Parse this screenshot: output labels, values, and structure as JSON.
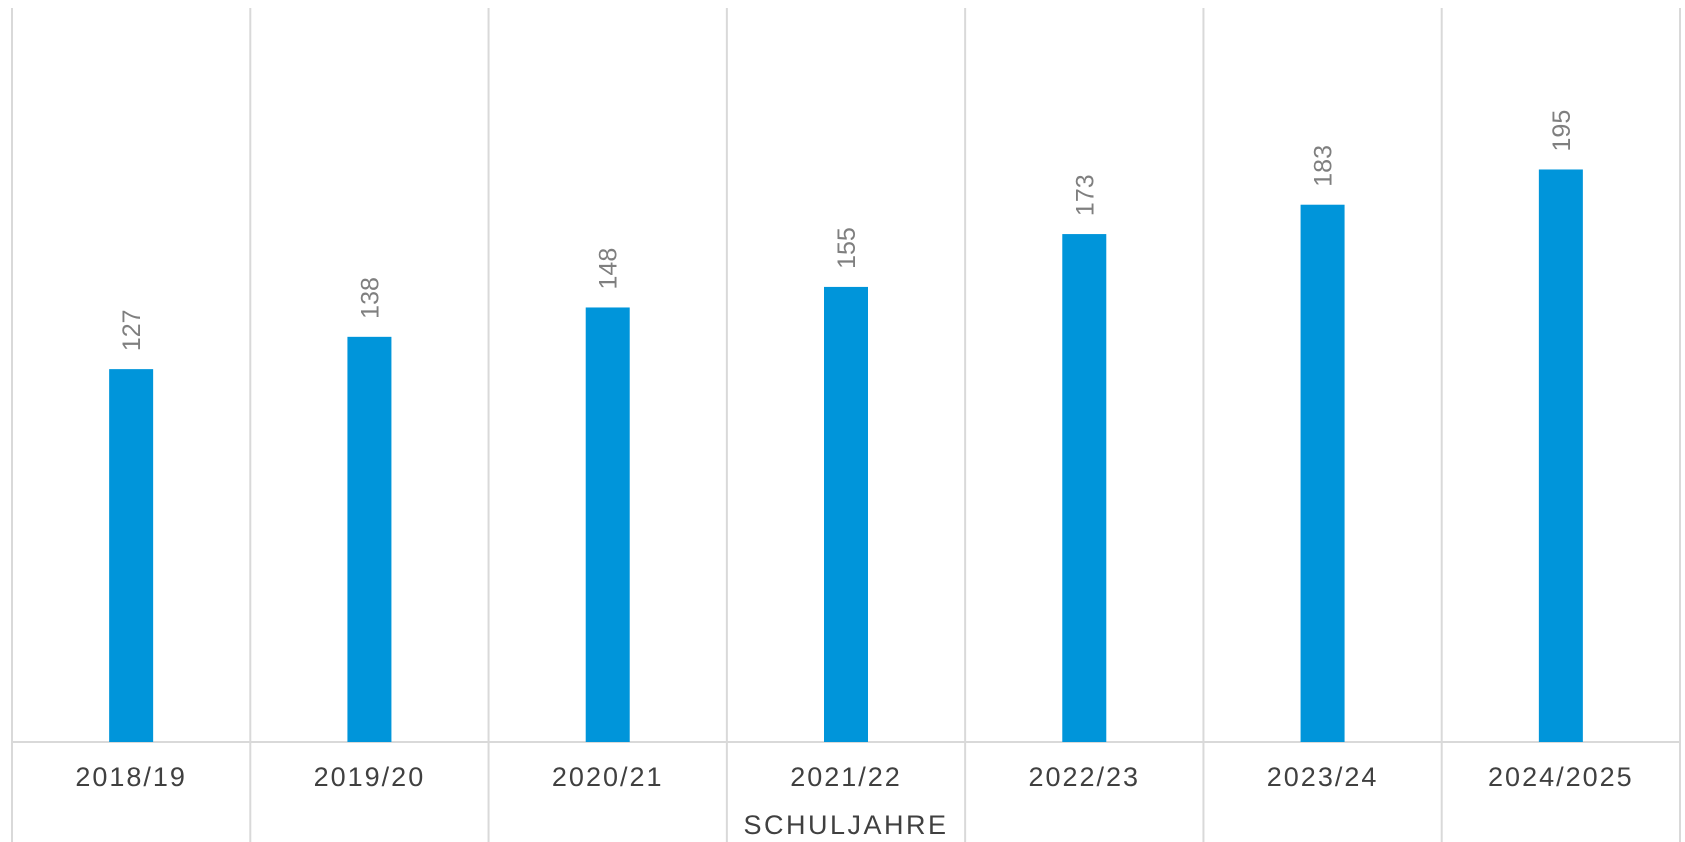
{
  "chart_data": {
    "type": "bar",
    "categories": [
      "2018/19",
      "2019/20",
      "2020/21",
      "2021/22",
      "2022/23",
      "2023/24",
      "2024/2025"
    ],
    "values": [
      127,
      138,
      148,
      155,
      173,
      183,
      195
    ],
    "title": "",
    "xlabel": "SCHULJAHRE",
    "ylabel": "",
    "ylim": [
      0,
      250
    ],
    "grid": "vertical category separators",
    "legend": "none",
    "bar_color": "#0095DA",
    "grid_color": "#D9D9D9"
  }
}
